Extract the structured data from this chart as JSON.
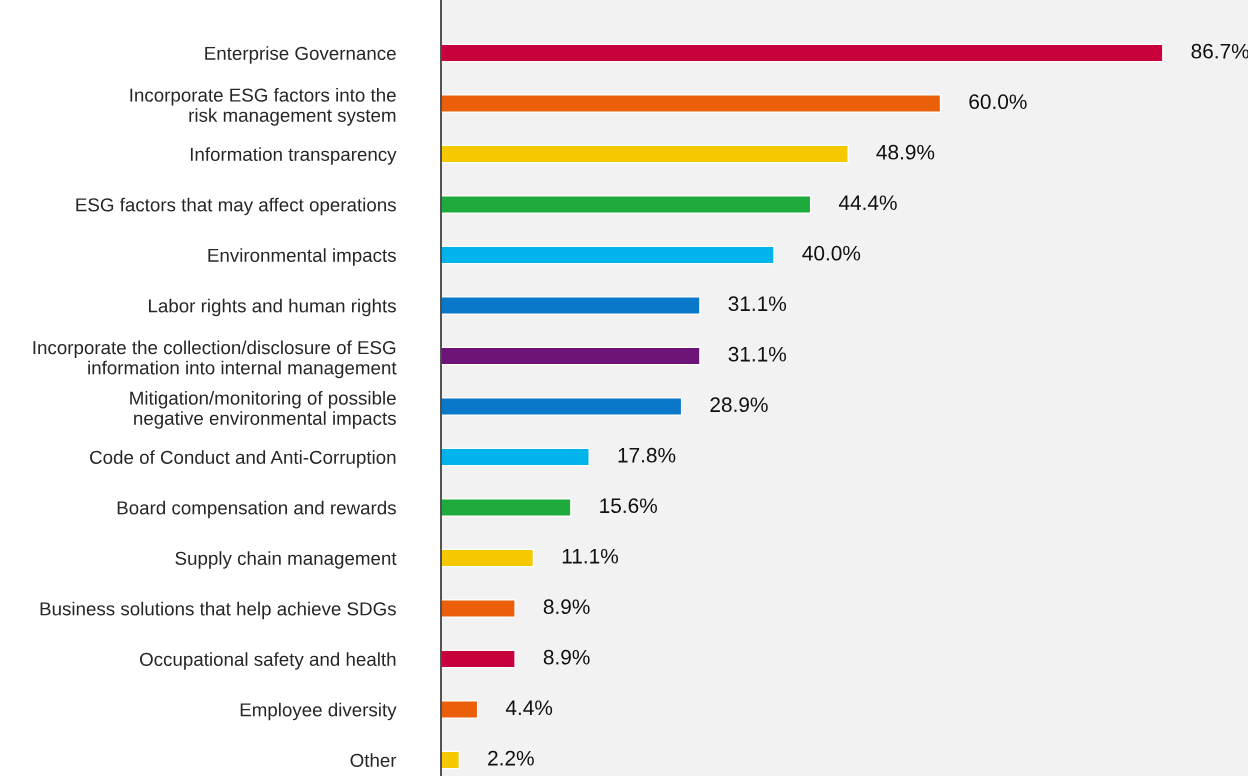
{
  "chart_data": {
    "type": "bar",
    "orientation": "horizontal",
    "categories": [
      "Enterprise Governance",
      "Incorporate ESG factors into the\nrisk management system",
      "Information transparency",
      "ESG factors that may affect operations",
      "Environmental impacts",
      "Labor rights and human rights",
      "Incorporate the collection/disclosure of ESG\ninformation into internal management",
      "Mitigation/monitoring of possible\nnegative environmental impacts",
      "Code of Conduct and Anti-Corruption",
      "Board compensation and rewards",
      "Supply chain management",
      "Business solutions that help achieve SDGs",
      "Occupational safety and health",
      "Employee diversity",
      "Other"
    ],
    "values": [
      86.7,
      60.0,
      48.9,
      44.4,
      40.0,
      31.1,
      31.1,
      28.9,
      17.8,
      15.6,
      11.1,
      8.9,
      8.9,
      4.4,
      2.2
    ],
    "value_labels": [
      "86.7%",
      "60.0%",
      "48.9%",
      "44.4%",
      "40.0%",
      "31.1%",
      "31.1%",
      "28.9%",
      "17.8%",
      "15.6%",
      "11.1%",
      "8.9%",
      "8.9%",
      "4.4%",
      "2.2%"
    ],
    "colors": [
      "#c8003c",
      "#eb5f0a",
      "#f5c800",
      "#1eaa3c",
      "#00b4eb",
      "#0a78c8",
      "#6e1478",
      "#0a78c8",
      "#00b4eb",
      "#1eaa3c",
      "#f5c800",
      "#eb5f0a",
      "#c8003c",
      "#eb5f0a",
      "#f5c800"
    ],
    "grid": false,
    "legend": false,
    "tick_labels": "y"
  }
}
